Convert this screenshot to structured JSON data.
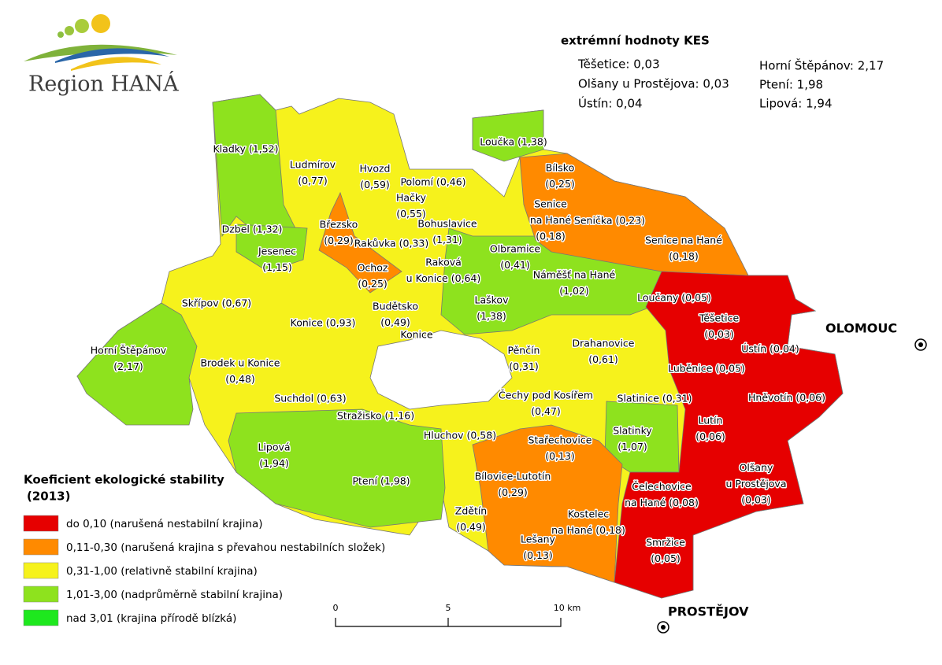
{
  "logo": {
    "text": "Region HANÁ"
  },
  "extremes": {
    "title": "extrémní hodnoty KES",
    "left": [
      "Těšetice: 0,03",
      "Olšany u Prostějova: 0,03",
      "Ústín: 0,04"
    ],
    "right": [
      "Horní Štěpánov: 2,17",
      "Ptení: 1,98",
      "Lipová: 1,94"
    ]
  },
  "legend": {
    "title": [
      "Koeficient ekologické stability",
      "(2013)"
    ],
    "items": [
      {
        "label": "do 0,10 (narušená nestabilní krajina)",
        "color": "#e60000"
      },
      {
        "label": "0,11-0,30 (narušená krajina s převahou nestabilních složek)",
        "color": "#ff8a00"
      },
      {
        "label": "0,31-1,00 (relativně stabilní krajina)",
        "color": "#f6f21c"
      },
      {
        "label": "1,01-3,00 (nadprůměrně stabilní krajina)",
        "color": "#8ee21e"
      },
      {
        "label": "nad 3,01 (krajina přírodě blízká)",
        "color": "#1ee81e"
      }
    ]
  },
  "scale": {
    "labels": [
      "0",
      "5",
      "10 km"
    ]
  },
  "cities": [
    {
      "name": "OLOMOUC"
    },
    {
      "name": "PROSTĚJOV"
    }
  ],
  "municipalities": [
    {
      "lines": [
        "Kladky (1,52)"
      ]
    },
    {
      "lines": [
        "Ludmírov",
        "(0,77)"
      ]
    },
    {
      "lines": [
        "Hvozd",
        "(0,59)"
      ]
    },
    {
      "lines": [
        "Polomí (0,46)"
      ]
    },
    {
      "lines": [
        "Hačky",
        "(0,55)"
      ]
    },
    {
      "lines": [
        "Loučka (1,38)"
      ]
    },
    {
      "lines": [
        "Bílsko",
        "(0,25)"
      ]
    },
    {
      "lines": [
        "Senice",
        "na Hané",
        "(0,18)"
      ]
    },
    {
      "lines": [
        "Senička (0,23)"
      ]
    },
    {
      "lines": [
        "Senice na Hané",
        "(0,18)"
      ]
    },
    {
      "lines": [
        "Dzbel (1,32)"
      ]
    },
    {
      "lines": [
        "Březsko",
        "(0,29)"
      ]
    },
    {
      "lines": [
        "Bohuslavice",
        "(1,31)"
      ]
    },
    {
      "lines": [
        "Rakůvka (0,33)"
      ]
    },
    {
      "lines": [
        "Jesenec",
        "(1,15)"
      ]
    },
    {
      "lines": [
        "Olbramice",
        "(0,41)"
      ]
    },
    {
      "lines": [
        "Ochoz",
        "(0,25)"
      ]
    },
    {
      "lines": [
        "Raková",
        "u Konice (0,64)"
      ]
    },
    {
      "lines": [
        "Náměšť na Hané",
        "(1,02)"
      ]
    },
    {
      "lines": [
        "Skřípov (0,67)"
      ]
    },
    {
      "lines": [
        "Loučany (0,05)"
      ]
    },
    {
      "lines": [
        "Budětsko",
        "(0,49)"
      ]
    },
    {
      "lines": [
        "Laškov",
        "(1,38)"
      ]
    },
    {
      "lines": [
        "Těšetice",
        "(0,03)"
      ]
    },
    {
      "lines": [
        "Konice (0,93)"
      ]
    },
    {
      "lines": [
        "Konice"
      ]
    },
    {
      "lines": [
        "Ústín (0,04)"
      ]
    },
    {
      "lines": [
        "Horní Štěpánov",
        "(2,17)"
      ]
    },
    {
      "lines": [
        "Pěnčín",
        "(0,31)"
      ]
    },
    {
      "lines": [
        "Drahanovice",
        "(0,61)"
      ]
    },
    {
      "lines": [
        "Luběnice (0,05)"
      ]
    },
    {
      "lines": [
        "Brodek u Konice",
        "(0,48)"
      ]
    },
    {
      "lines": [
        "Suchdol (0,63)"
      ]
    },
    {
      "lines": [
        "Čechy pod Kosířem",
        "(0,47)"
      ]
    },
    {
      "lines": [
        "Hněvotín (0,06)"
      ]
    },
    {
      "lines": [
        "Slatinice (0,31)"
      ]
    },
    {
      "lines": [
        "Stražisko (1,16)"
      ]
    },
    {
      "lines": [
        "Lutín",
        "(0,06)"
      ]
    },
    {
      "lines": [
        "Slatinky",
        "(1,07)"
      ]
    },
    {
      "lines": [
        "Hluchov (0,58)"
      ]
    },
    {
      "lines": [
        "Stařechovice",
        "(0,13)"
      ]
    },
    {
      "lines": [
        "Lipová",
        "(1,94)"
      ]
    },
    {
      "lines": [
        "Ptení (1,98)"
      ]
    },
    {
      "lines": [
        "Bílovice-Lutotín",
        "(0,29)"
      ]
    },
    {
      "lines": [
        "Olšany",
        "u Prostějova",
        "(0,03)"
      ]
    },
    {
      "lines": [
        "Čelechovice",
        "na Hané (0,08)"
      ]
    },
    {
      "lines": [
        "Zdětín",
        "(0,49)"
      ]
    },
    {
      "lines": [
        "Kostelec",
        "na Hané (0,18)"
      ]
    },
    {
      "lines": [
        "Lešany",
        "(0,13)"
      ]
    },
    {
      "lines": [
        "Smržice",
        "(0,05)"
      ]
    }
  ]
}
